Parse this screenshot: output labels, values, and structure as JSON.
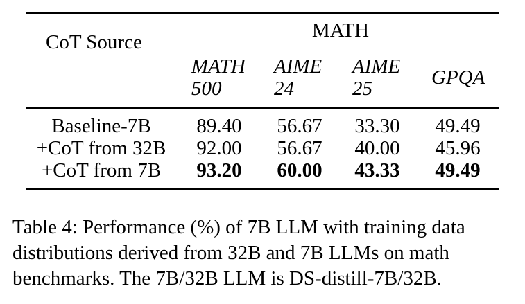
{
  "table": {
    "cot_source_header": "CoT Source",
    "group_header": "MATH",
    "columns": [
      {
        "line1": "MATH",
        "line2": "500"
      },
      {
        "line1": "AIME",
        "line2": "24"
      },
      {
        "line1": "AIME",
        "line2": "25"
      },
      {
        "line1": "GPQA",
        "line2": ""
      }
    ],
    "rows": [
      {
        "label": "Baseline-7B",
        "values": [
          "89.40",
          "56.67",
          "33.30",
          "49.49"
        ]
      },
      {
        "label": "+CoT from 32B",
        "values": [
          "92.00",
          "56.67",
          "40.00",
          "45.96"
        ]
      },
      {
        "label": "+CoT from 7B",
        "values": [
          "93.20",
          "60.00",
          "43.33",
          "49.49"
        ]
      }
    ]
  },
  "caption": "Table 4: Performance (%) of 7B LLM with training data distributions derived from 32B and 7B LLMs on math benchmarks. The 7B/32B LLM is DS-distill-7B/32B."
}
